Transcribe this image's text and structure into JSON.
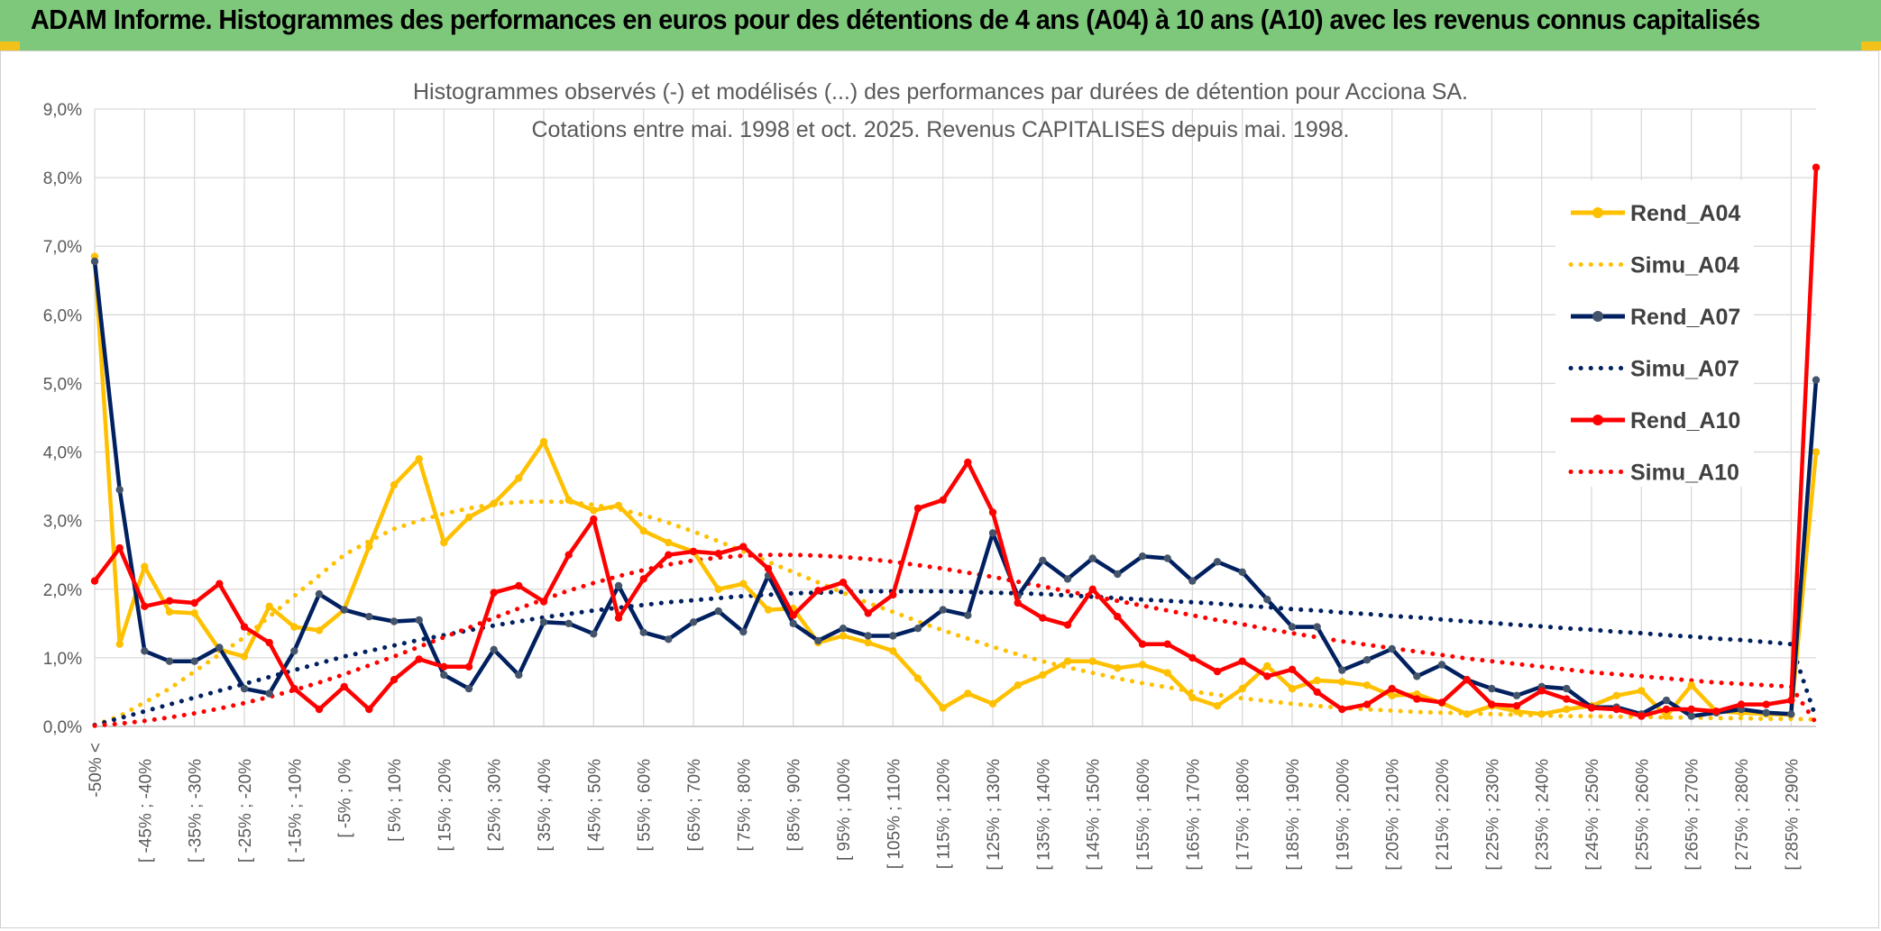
{
  "header": {
    "title": "ADAM Informe. Histogrammes des performances en euros pour des détentions de 4 ans (A04) à 10 ans (A10) avec les revenus connus capitalisés"
  },
  "chart_data": {
    "type": "line",
    "title_line1": "Histogrammes observés (-) et modélisés (...) des performances par durées de détention pour Acciona SA.",
    "title_line2": "Cotations entre mai. 1998 et oct. 2025. Revenus CAPITALISES depuis mai. 1998.",
    "ylim": [
      0,
      9
    ],
    "yticks": [
      "0,0%",
      "1,0%",
      "2,0%",
      "3,0%",
      "4,0%",
      "5,0%",
      "6,0%",
      "7,0%",
      "8,0%",
      "9,0%"
    ],
    "grid": true,
    "legend_position": "right",
    "x_labels": [
      "-50% <",
      "[ -45% ; -40%",
      "[ -35% ; -30%",
      "[ -25% ; -20%",
      "[ -15% ; -10%",
      "[ -5% ; 0%",
      "[ 5% ; 10%",
      "[ 15% ; 20%",
      "[ 25% ; 30%",
      "[ 35% ; 40%",
      "[ 45% ; 50%",
      "[ 55% ; 60%",
      "[ 65% ; 70%",
      "[ 75% ; 80%",
      "[ 85% ; 90%",
      "[ 95% ; 100%",
      "[ 105% ; 110%",
      "[ 115% ; 120%",
      "[ 125% ; 130%",
      "[ 135% ; 140%",
      "[ 145% ; 150%",
      "[ 155% ; 160%",
      "[ 165% ; 170%",
      "[ 175% ; 180%",
      "[ 185% ; 190%",
      "[ 195% ; 200%",
      "[ 205% ; 210%",
      "[ 215% ; 220%",
      "[ 225% ; 230%",
      "[ 235% ; 240%",
      "[ 245% ; 250%",
      "[ 255% ; 260%",
      "[ 265% ; 270%",
      "[ 275% ; 280%",
      "[ 285% ; 290%"
    ],
    "series": [
      {
        "name": "Rend_A04",
        "color": "#ffc000",
        "style": "solid",
        "markers": true,
        "values": [
          6.85,
          1.2,
          2.33,
          1.67,
          1.65,
          1.12,
          1.02,
          1.75,
          1.45,
          1.4,
          1.7,
          2.62,
          3.52,
          3.9,
          2.68,
          3.05,
          3.25,
          3.62,
          4.15,
          3.3,
          3.15,
          3.22,
          2.85,
          2.68,
          2.55,
          2.0,
          2.08,
          1.7,
          1.72,
          1.22,
          1.32,
          1.22,
          1.1,
          0.7,
          0.27,
          0.48,
          0.33,
          0.6,
          0.75,
          0.95,
          0.95,
          0.85,
          0.9,
          0.78,
          0.42,
          0.3,
          0.55,
          0.88,
          0.55,
          0.67,
          0.65,
          0.6,
          0.45,
          0.47,
          0.34,
          0.18,
          0.3,
          0.22,
          0.18,
          0.25,
          0.3,
          0.45,
          0.52,
          0.15,
          0.6,
          0.22,
          0.2,
          0.18,
          0.17,
          4.0
        ]
      },
      {
        "name": "Simu_A04",
        "color": "#ffc000",
        "style": "dotted",
        "markers": false,
        "values": [
          0.02,
          0.15,
          0.35,
          0.55,
          0.8,
          1.05,
          1.3,
          1.6,
          1.9,
          2.2,
          2.5,
          2.7,
          2.88,
          3.0,
          3.1,
          3.18,
          3.24,
          3.27,
          3.28,
          3.27,
          3.23,
          3.17,
          3.08,
          2.97,
          2.84,
          2.7,
          2.55,
          2.4,
          2.25,
          2.1,
          1.95,
          1.8,
          1.67,
          1.53,
          1.4,
          1.28,
          1.16,
          1.05,
          0.95,
          0.86,
          0.78,
          0.7,
          0.63,
          0.57,
          0.51,
          0.46,
          0.41,
          0.37,
          0.33,
          0.3,
          0.27,
          0.25,
          0.23,
          0.21,
          0.2,
          0.19,
          0.18,
          0.17,
          0.16,
          0.15,
          0.15,
          0.14,
          0.14,
          0.13,
          0.13,
          0.12,
          0.12,
          0.11,
          0.11,
          0.1
        ]
      },
      {
        "name": "Rend_A07",
        "color": "#002060",
        "style": "solid",
        "markers": true,
        "values": [
          6.78,
          3.45,
          1.1,
          0.95,
          0.95,
          1.15,
          0.55,
          0.48,
          1.1,
          1.93,
          1.7,
          1.6,
          1.53,
          1.55,
          0.75,
          0.55,
          1.12,
          0.75,
          1.52,
          1.5,
          1.35,
          2.05,
          1.37,
          1.27,
          1.52,
          1.68,
          1.38,
          2.2,
          1.5,
          1.25,
          1.43,
          1.32,
          1.32,
          1.43,
          1.7,
          1.62,
          2.82,
          1.9,
          2.42,
          2.15,
          2.45,
          2.22,
          2.48,
          2.45,
          2.12,
          2.4,
          2.25,
          1.85,
          1.45,
          1.45,
          0.82,
          0.97,
          1.13,
          0.73,
          0.9,
          0.68,
          0.55,
          0.45,
          0.58,
          0.55,
          0.28,
          0.28,
          0.18,
          0.38,
          0.15,
          0.2,
          0.25,
          0.2,
          0.18,
          5.05
        ]
      },
      {
        "name": "Simu_A07",
        "color": "#002060",
        "style": "dotted",
        "markers": false,
        "values": [
          0.02,
          0.12,
          0.22,
          0.32,
          0.42,
          0.52,
          0.62,
          0.72,
          0.82,
          0.92,
          1.02,
          1.1,
          1.18,
          1.26,
          1.33,
          1.4,
          1.47,
          1.53,
          1.59,
          1.64,
          1.69,
          1.73,
          1.77,
          1.81,
          1.84,
          1.87,
          1.9,
          1.92,
          1.94,
          1.95,
          1.96,
          1.97,
          1.97,
          1.97,
          1.97,
          1.96,
          1.95,
          1.94,
          1.93,
          1.91,
          1.89,
          1.87,
          1.85,
          1.83,
          1.81,
          1.79,
          1.76,
          1.74,
          1.71,
          1.69,
          1.66,
          1.64,
          1.61,
          1.59,
          1.56,
          1.53,
          1.51,
          1.48,
          1.46,
          1.43,
          1.41,
          1.38,
          1.36,
          1.33,
          1.31,
          1.28,
          1.26,
          1.23,
          1.2,
          0.12
        ]
      },
      {
        "name": "Rend_A10",
        "color": "#ff0000",
        "style": "solid",
        "markers": true,
        "values": [
          2.12,
          2.6,
          1.75,
          1.83,
          1.8,
          2.08,
          1.45,
          1.22,
          0.55,
          0.25,
          0.58,
          0.25,
          0.68,
          0.98,
          0.87,
          0.87,
          1.95,
          2.05,
          1.82,
          2.5,
          3.02,
          1.58,
          2.15,
          2.5,
          2.55,
          2.52,
          2.62,
          2.3,
          1.62,
          1.98,
          2.1,
          1.65,
          1.92,
          3.18,
          3.3,
          3.85,
          3.12,
          1.8,
          1.58,
          1.48,
          2.0,
          1.6,
          1.2,
          1.2,
          1.0,
          0.8,
          0.95,
          0.73,
          0.83,
          0.5,
          0.25,
          0.32,
          0.55,
          0.4,
          0.35,
          0.68,
          0.32,
          0.3,
          0.52,
          0.4,
          0.27,
          0.25,
          0.15,
          0.25,
          0.25,
          0.22,
          0.32,
          0.32,
          0.38,
          8.15
        ]
      },
      {
        "name": "Simu_A10",
        "color": "#ff0000",
        "style": "dotted",
        "markers": false,
        "values": [
          0.01,
          0.04,
          0.08,
          0.13,
          0.19,
          0.26,
          0.34,
          0.43,
          0.53,
          0.64,
          0.76,
          0.89,
          1.02,
          1.16,
          1.3,
          1.44,
          1.58,
          1.72,
          1.85,
          1.98,
          2.09,
          2.19,
          2.28,
          2.36,
          2.42,
          2.46,
          2.49,
          2.5,
          2.5,
          2.49,
          2.47,
          2.44,
          2.4,
          2.35,
          2.3,
          2.24,
          2.18,
          2.11,
          2.04,
          1.97,
          1.9,
          1.83,
          1.76,
          1.69,
          1.62,
          1.55,
          1.49,
          1.42,
          1.36,
          1.3,
          1.24,
          1.19,
          1.14,
          1.09,
          1.04,
          0.99,
          0.95,
          0.91,
          0.87,
          0.83,
          0.79,
          0.76,
          0.73,
          0.7,
          0.67,
          0.64,
          0.62,
          0.6,
          0.58,
          0.05
        ]
      }
    ]
  }
}
